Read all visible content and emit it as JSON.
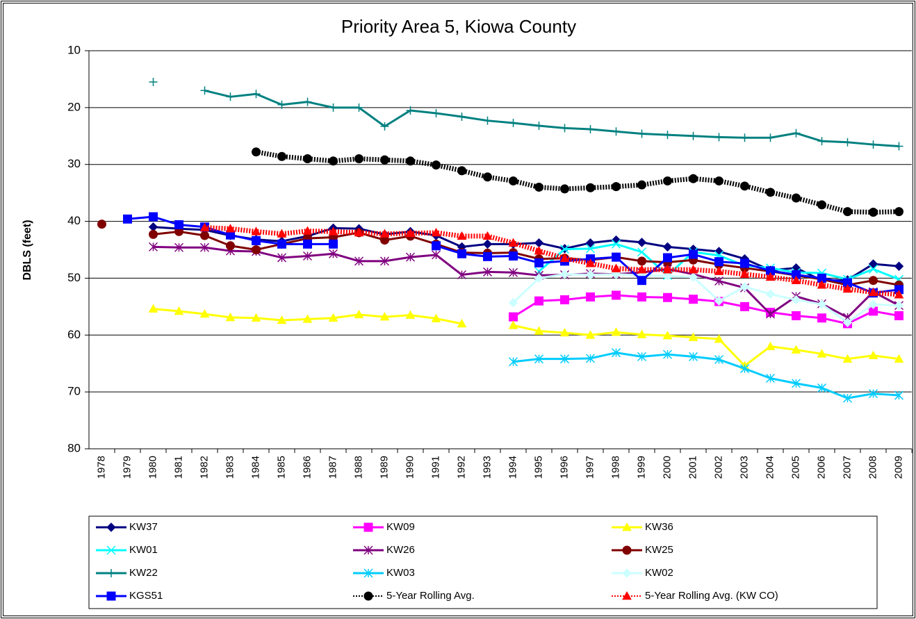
{
  "chart_data": {
    "type": "line",
    "title": "Priority Area 5, Kiowa County",
    "y_label": "DBLS (feet)",
    "categories": [
      "1978",
      "1979",
      "1980",
      "1981",
      "1982",
      "1983",
      "1984",
      "1985",
      "1986",
      "1987",
      "1988",
      "1989",
      "1990",
      "1991",
      "1992",
      "1993",
      "1994",
      "1995",
      "1996",
      "1997",
      "1998",
      "1999",
      "2000",
      "2001",
      "2002",
      "2003",
      "2004",
      "2005",
      "2006",
      "2007",
      "2008",
      "2009"
    ],
    "ylim": [
      10,
      80
    ],
    "yticks": [
      10,
      20,
      30,
      40,
      50,
      60,
      70,
      80
    ],
    "y_inverted": true,
    "grid": true,
    "legend": "bottom",
    "series": [
      {
        "name": "KW37",
        "color": "#000080",
        "marker": "diamond",
        "values": [
          null,
          null,
          41,
          41.3,
          41.5,
          42.5,
          43.2,
          43.5,
          42.6,
          41.2,
          41.3,
          42.3,
          41.8,
          42.5,
          44.5,
          44,
          44,
          43.8,
          44.8,
          43.8,
          43.3,
          43.7,
          44.5,
          44.9,
          45.3,
          46.6,
          48.6,
          48.2,
          50.4,
          50.3,
          47.5,
          47.9
        ]
      },
      {
        "name": "KW09",
        "color": "#ff00ff",
        "marker": "square",
        "values": [
          null,
          null,
          null,
          null,
          null,
          null,
          null,
          null,
          null,
          null,
          null,
          null,
          null,
          null,
          null,
          null,
          56.8,
          54,
          53.8,
          53.3,
          53,
          53.3,
          53.4,
          53.7,
          54.1,
          55,
          56,
          56.6,
          57,
          58,
          55.8,
          56.6
        ]
      },
      {
        "name": "KW36",
        "color": "#ffff00",
        "marker": "triangle",
        "values": [
          null,
          null,
          55.4,
          55.8,
          56.3,
          56.9,
          57,
          57.4,
          57.2,
          57,
          56.4,
          56.8,
          56.5,
          57.1,
          58,
          null,
          58.3,
          59.3,
          59.6,
          60,
          59.5,
          59.9,
          60.1,
          60.4,
          60.7,
          65.4,
          62,
          62.6,
          63.3,
          64.2,
          63.6,
          64.2
        ]
      },
      {
        "name": "KW01",
        "color": "#00ffff",
        "marker": "x",
        "values": [
          null,
          null,
          null,
          null,
          null,
          null,
          null,
          null,
          null,
          null,
          null,
          null,
          null,
          null,
          null,
          null,
          null,
          48.8,
          44.9,
          44.8,
          44,
          45.4,
          49.5,
          45.4,
          46,
          47.8,
          48.2,
          49,
          49.1,
          50.2,
          48.4,
          50.2
        ]
      },
      {
        "name": "KW26",
        "color": "#800080",
        "marker": "star",
        "values": [
          null,
          null,
          44.5,
          44.6,
          44.6,
          45.2,
          45.3,
          46.4,
          46.1,
          45.7,
          47,
          47,
          46.3,
          45.9,
          49.4,
          48.9,
          49,
          49.5,
          49.4,
          49.2,
          49.3,
          49,
          48.4,
          49.3,
          50.5,
          51.7,
          56.3,
          53.2,
          54.5,
          56.9,
          52.4,
          54.8
        ]
      },
      {
        "name": "KW25",
        "color": "#800000",
        "marker": "circle",
        "values": [
          40.5,
          null,
          42.3,
          41.8,
          42.5,
          44.3,
          45,
          44,
          43,
          42.8,
          42,
          43.3,
          42.6,
          44,
          45.5,
          45.6,
          45.5,
          46.6,
          46.5,
          46.8,
          46.3,
          47,
          47.2,
          46.8,
          47.6,
          48.2,
          48.8,
          49.5,
          50.2,
          51.2,
          50.4,
          51.2
        ]
      },
      {
        "name": "KW22",
        "color": "#008080",
        "marker": "plus",
        "values": [
          null,
          null,
          15.5,
          null,
          17,
          18.1,
          17.6,
          19.5,
          19,
          20,
          20,
          23.3,
          20.5,
          21,
          21.6,
          22.3,
          22.7,
          23.2,
          23.6,
          23.8,
          24.2,
          24.6,
          24.8,
          25,
          25.2,
          25.3,
          25.3,
          24.5,
          25.9,
          26.1,
          26.5,
          26.8
        ]
      },
      {
        "name": "KW03",
        "color": "#00ccff",
        "marker": "star",
        "values": [
          null,
          null,
          null,
          null,
          null,
          null,
          null,
          null,
          null,
          null,
          null,
          null,
          null,
          null,
          null,
          null,
          64.7,
          64.2,
          64.2,
          64.1,
          63.1,
          63.8,
          63.4,
          63.8,
          64.3,
          65.9,
          67.6,
          68.5,
          69.3,
          71.1,
          70.3,
          70.6
        ]
      },
      {
        "name": "KW02",
        "color": "#ccffff",
        "marker": "diamond",
        "values": [
          null,
          null,
          null,
          null,
          null,
          null,
          null,
          null,
          null,
          null,
          null,
          null,
          null,
          null,
          null,
          null,
          54.3,
          50,
          49.3,
          49.4,
          49.3,
          49.5,
          49.6,
          49.8,
          54,
          51.5,
          52.8,
          53.8,
          54.6,
          57.8,
          54.6,
          54.8
        ]
      },
      {
        "name": "KGS51",
        "color": "#0000ff",
        "marker": "square",
        "values": [
          null,
          39.6,
          39.2,
          40.6,
          41,
          42.4,
          43.4,
          44,
          44,
          44,
          null,
          null,
          null,
          44.3,
          45.7,
          46.2,
          46.1,
          47.3,
          47,
          46.6,
          46.3,
          50.4,
          46.4,
          45.8,
          47.1,
          47.4,
          48.7,
          49.4,
          50,
          50.8,
          52.6,
          52
        ]
      },
      {
        "name": "5-Year Rolling Avg.",
        "color": "#000000",
        "marker": "circle",
        "line_style": "dotted",
        "values": [
          null,
          null,
          null,
          null,
          null,
          null,
          27.8,
          28.6,
          29,
          29.4,
          29,
          29.2,
          29.4,
          30.1,
          31.1,
          32.2,
          32.9,
          34,
          34.3,
          34.1,
          33.9,
          33.6,
          32.9,
          32.5,
          32.9,
          33.8,
          34.9,
          35.9,
          37.1,
          38.3,
          38.4,
          38.3
        ]
      },
      {
        "name": "5-Year Rolling Avg. (KW CO)",
        "color": "#ff0000",
        "marker": "triangle",
        "line_style": "dotted",
        "values": [
          null,
          null,
          null,
          null,
          41.1,
          41.3,
          41.8,
          42.2,
          41.7,
          41.8,
          42,
          42.2,
          42.1,
          42,
          42.6,
          42.6,
          43.8,
          45.2,
          46.5,
          47.4,
          48.3,
          48.5,
          48.5,
          48.5,
          48.8,
          49.3,
          49.8,
          50.4,
          51.2,
          51.9,
          52.5,
          52.9
        ]
      }
    ]
  }
}
